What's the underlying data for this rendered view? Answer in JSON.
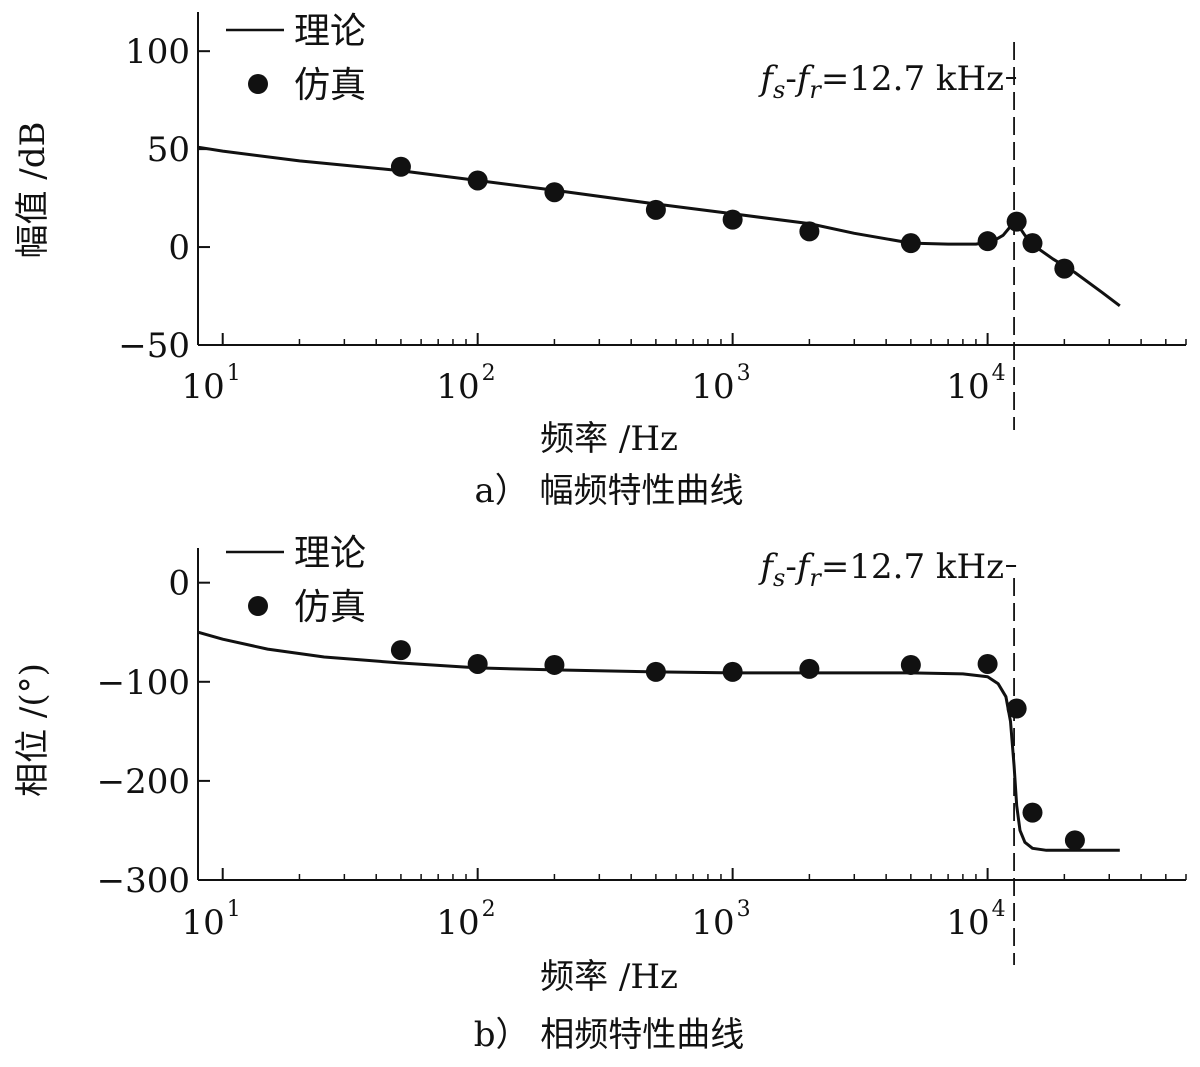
{
  "chart_data": [
    {
      "type": "line",
      "caption": "a） 幅频特性曲线",
      "xlabel": "频率 /Hz",
      "ylabel": "幅值 /dB",
      "xscale": "log",
      "xlim": [
        8,
        60000
      ],
      "ylim": [
        -50,
        120
      ],
      "x_ticks": [
        {
          "base": "10",
          "exp": "1",
          "value": 10
        },
        {
          "base": "10",
          "exp": "2",
          "value": 100
        },
        {
          "base": "10",
          "exp": "3",
          "value": 1000
        },
        {
          "base": "10",
          "exp": "4",
          "value": 10000
        }
      ],
      "y_ticks": [
        {
          "label": "100",
          "value": 100
        },
        {
          "label": "50",
          "value": 50
        },
        {
          "label": "0",
          "value": 0
        },
        {
          "label": "−50",
          "value": -50
        }
      ],
      "legend": {
        "placement": "top-left",
        "line_label": "理论",
        "marker_label": "仿真"
      },
      "annotation": {
        "italic_f": "f",
        "sub_s": "s",
        "dash": "-",
        "sub_r": "r",
        "text": "=12.7 kHz",
        "x": 12700
      },
      "series": [
        {
          "name": "理论",
          "style": "line",
          "x": [
            8,
            10,
            20,
            50,
            100,
            200,
            500,
            1000,
            2000,
            3000,
            5000,
            7000,
            9000,
            10500,
            11500,
            12200,
            12700,
            13200,
            14000,
            15500,
            18000,
            22000,
            28000,
            33000
          ],
          "y": [
            51,
            49,
            44,
            39,
            34,
            29,
            22,
            17,
            12,
            7,
            2,
            1.5,
            1.5,
            3,
            6,
            10,
            13,
            11,
            6,
            0,
            -6,
            -13,
            -23,
            -30
          ]
        },
        {
          "name": "仿真",
          "style": "marker",
          "x": [
            50,
            100,
            200,
            500,
            1000,
            2000,
            5000,
            10000,
            13000,
            15000,
            20000
          ],
          "y": [
            41,
            34,
            28,
            19,
            14,
            8,
            2,
            3,
            13,
            2,
            -11
          ]
        }
      ]
    },
    {
      "type": "line",
      "caption": "b） 相频特性曲线",
      "xlabel": "频率 /Hz",
      "ylabel": "相位 /(°)",
      "xscale": "log",
      "xlim": [
        8,
        60000
      ],
      "ylim": [
        -300,
        35
      ],
      "x_ticks": [
        {
          "base": "10",
          "exp": "1",
          "value": 10
        },
        {
          "base": "10",
          "exp": "2",
          "value": 100
        },
        {
          "base": "10",
          "exp": "3",
          "value": 1000
        },
        {
          "base": "10",
          "exp": "4",
          "value": 10000
        }
      ],
      "y_ticks": [
        {
          "label": "0",
          "value": 0
        },
        {
          "label": "−100",
          "value": -100
        },
        {
          "label": "−200",
          "value": -200
        },
        {
          "label": "−300",
          "value": -300
        }
      ],
      "legend": {
        "placement": "top-left",
        "line_label": "理论",
        "marker_label": "仿真"
      },
      "annotation": {
        "italic_f": "f",
        "sub_s": "s",
        "dash": "-",
        "sub_r": "r",
        "text": "=12.7 kHz",
        "x": 12700
      },
      "series": [
        {
          "name": "理论",
          "style": "line",
          "x": [
            8,
            10,
            15,
            25,
            50,
            100,
            200,
            500,
            1000,
            2000,
            5000,
            8000,
            10000,
            11000,
            11800,
            12300,
            12700,
            13000,
            13400,
            14000,
            15000,
            17000,
            20000,
            25000,
            33000
          ],
          "y": [
            -50,
            -57,
            -67,
            -75,
            -81,
            -86,
            -88,
            -90,
            -91,
            -91,
            -91,
            -92,
            -95,
            -102,
            -115,
            -140,
            -185,
            -225,
            -250,
            -262,
            -268,
            -270,
            -270,
            -270,
            -270
          ]
        },
        {
          "name": "仿真",
          "style": "marker",
          "x": [
            50,
            100,
            200,
            500,
            1000,
            2000,
            5000,
            10000,
            13000,
            15000,
            22000
          ],
          "y": [
            -68,
            -82,
            -83,
            -90,
            -90,
            -87,
            -83,
            -82,
            -127,
            -232,
            -260
          ]
        }
      ]
    }
  ]
}
